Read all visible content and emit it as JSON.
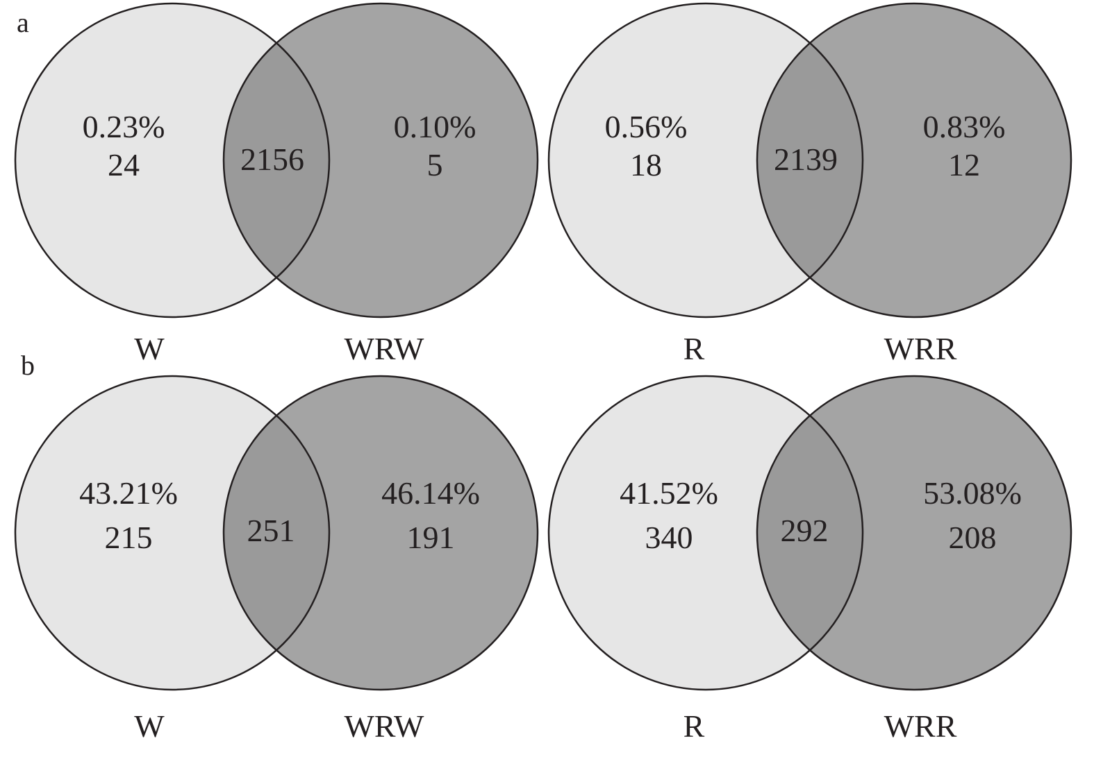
{
  "colors": {
    "left_fill": "#e6e6e6",
    "right_fill": "#a4a4a4",
    "overlap_fill": "#9a9a9a",
    "stroke": "#231f20",
    "text": "#231f20"
  },
  "panels": [
    {
      "letter": "a",
      "venns": [
        {
          "left_set": "W",
          "right_set": "WRW",
          "left_only_pct": "0.23%",
          "left_only_count": "24",
          "shared_count": "2156",
          "right_only_pct": "0.10%",
          "right_only_count": "5"
        },
        {
          "left_set": "R",
          "right_set": "WRR",
          "left_only_pct": "0.56%",
          "left_only_count": "18",
          "shared_count": "2139",
          "right_only_pct": "0.83%",
          "right_only_count": "12"
        }
      ]
    },
    {
      "letter": "b",
      "venns": [
        {
          "left_set": "W",
          "right_set": "WRW",
          "left_only_pct": "43.21%",
          "left_only_count": "215",
          "shared_count": "251",
          "right_only_pct": "46.14%",
          "right_only_count": "191"
        },
        {
          "left_set": "R",
          "right_set": "WRR",
          "left_only_pct": "41.52%",
          "left_only_count": "340",
          "shared_count": "292",
          "right_only_pct": "53.08%",
          "right_only_count": "208"
        }
      ]
    }
  ]
}
